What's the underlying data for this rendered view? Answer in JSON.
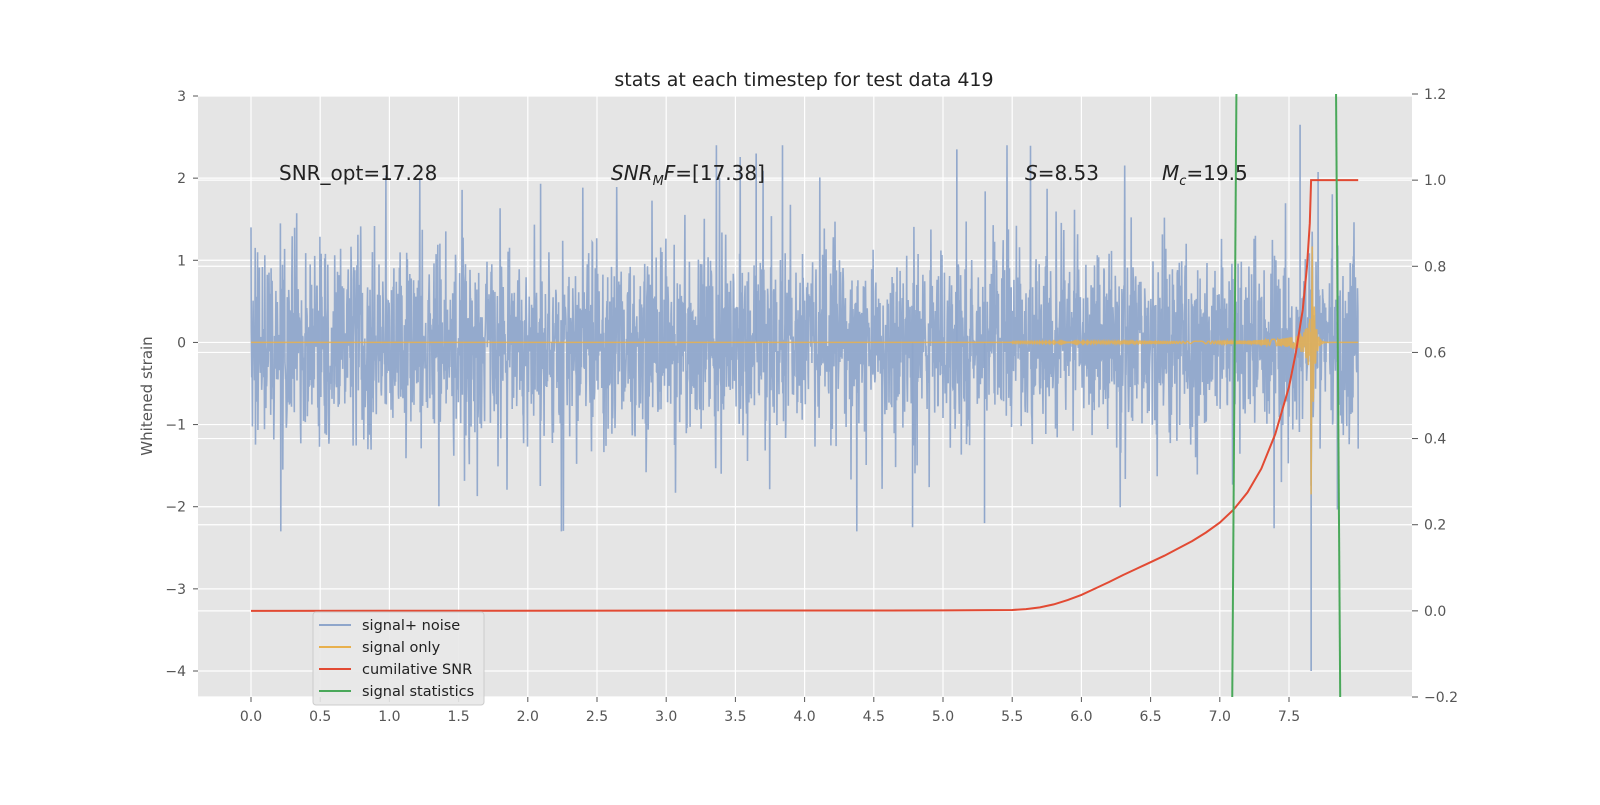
{
  "chart_data": {
    "type": "line",
    "title": "stats at each timestep for test data 419",
    "ylabel": "Whitened strain",
    "xlabel": "",
    "xlim": [
      -0.4,
      8.4
    ],
    "ylim": [
      -4.3,
      3.0
    ],
    "y2lim": [
      -0.2,
      1.2
    ],
    "x_ticks": [
      "0.0",
      "0.5",
      "1.0",
      "1.5",
      "2.0",
      "2.5",
      "3.0",
      "3.5",
      "4.0",
      "4.5",
      "5.0",
      "5.5",
      "6.0",
      "6.5",
      "7.0",
      "7.5"
    ],
    "y_ticks": [
      "3",
      "2",
      "1",
      "0",
      "−1",
      "−2",
      "−3",
      "−4"
    ],
    "y2_ticks": [
      "1.2",
      "1.0",
      "0.8",
      "0.6",
      "0.4",
      "0.2",
      "0.0",
      "−0.2"
    ],
    "annotations": [
      {
        "text": "SNR_opt=17.28",
        "x": 0.2,
        "y": 2.0
      },
      {
        "text": "SNR_MF=[17.38]",
        "x": 2.6,
        "y": 2.0
      },
      {
        "text": "S=8.53",
        "x": 5.6,
        "y": 2.0
      },
      {
        "text": "M_c=19.5",
        "x": 6.6,
        "y": 2.0
      }
    ],
    "series": [
      {
        "name": "signal+ noise",
        "axis": "left",
        "color": "#8fa6cb",
        "description": "whitened noise, amplitude about 1.4, spans 0 to 8"
      },
      {
        "name": "signal only",
        "axis": "left",
        "color": "#e8b04d",
        "description": "chirp growing from 5.6 to merger at 7.66, min about -1.85"
      },
      {
        "name": "cumilative SNR",
        "axis": "right",
        "color": "#e24a33",
        "x": [
          0.0,
          5.0,
          5.5,
          5.6,
          5.7,
          5.8,
          5.9,
          6.0,
          6.1,
          6.2,
          6.3,
          6.4,
          6.5,
          6.6,
          6.7,
          6.8,
          6.9,
          7.0,
          7.1,
          7.2,
          7.3,
          7.4,
          7.5,
          7.55,
          7.6,
          7.63,
          7.65,
          7.66,
          7.7,
          8.0
        ],
        "values": [
          0.0,
          0.001,
          0.002,
          0.004,
          0.008,
          0.015,
          0.025,
          0.037,
          0.052,
          0.067,
          0.083,
          0.098,
          0.113,
          0.128,
          0.145,
          0.162,
          0.182,
          0.205,
          0.235,
          0.275,
          0.33,
          0.41,
          0.52,
          0.6,
          0.7,
          0.8,
          0.9,
          1.0,
          1.0,
          1.0
        ]
      },
      {
        "name": "signal statistics",
        "axis": "right",
        "color": "#348abd",
        "line_color": "#4aa85a",
        "lines": [
          {
            "x": [
              7.09,
              7.12
            ],
            "y": [
              -0.2,
              1.2
            ]
          },
          {
            "x": [
              7.87,
              7.84
            ],
            "y": [
              -0.2,
              1.2
            ]
          }
        ]
      }
    ],
    "legend": {
      "position": "lower-left",
      "entries": [
        "signal+ noise",
        "signal only",
        "cumilative SNR",
        "signal statistics"
      ]
    },
    "grid": true
  }
}
